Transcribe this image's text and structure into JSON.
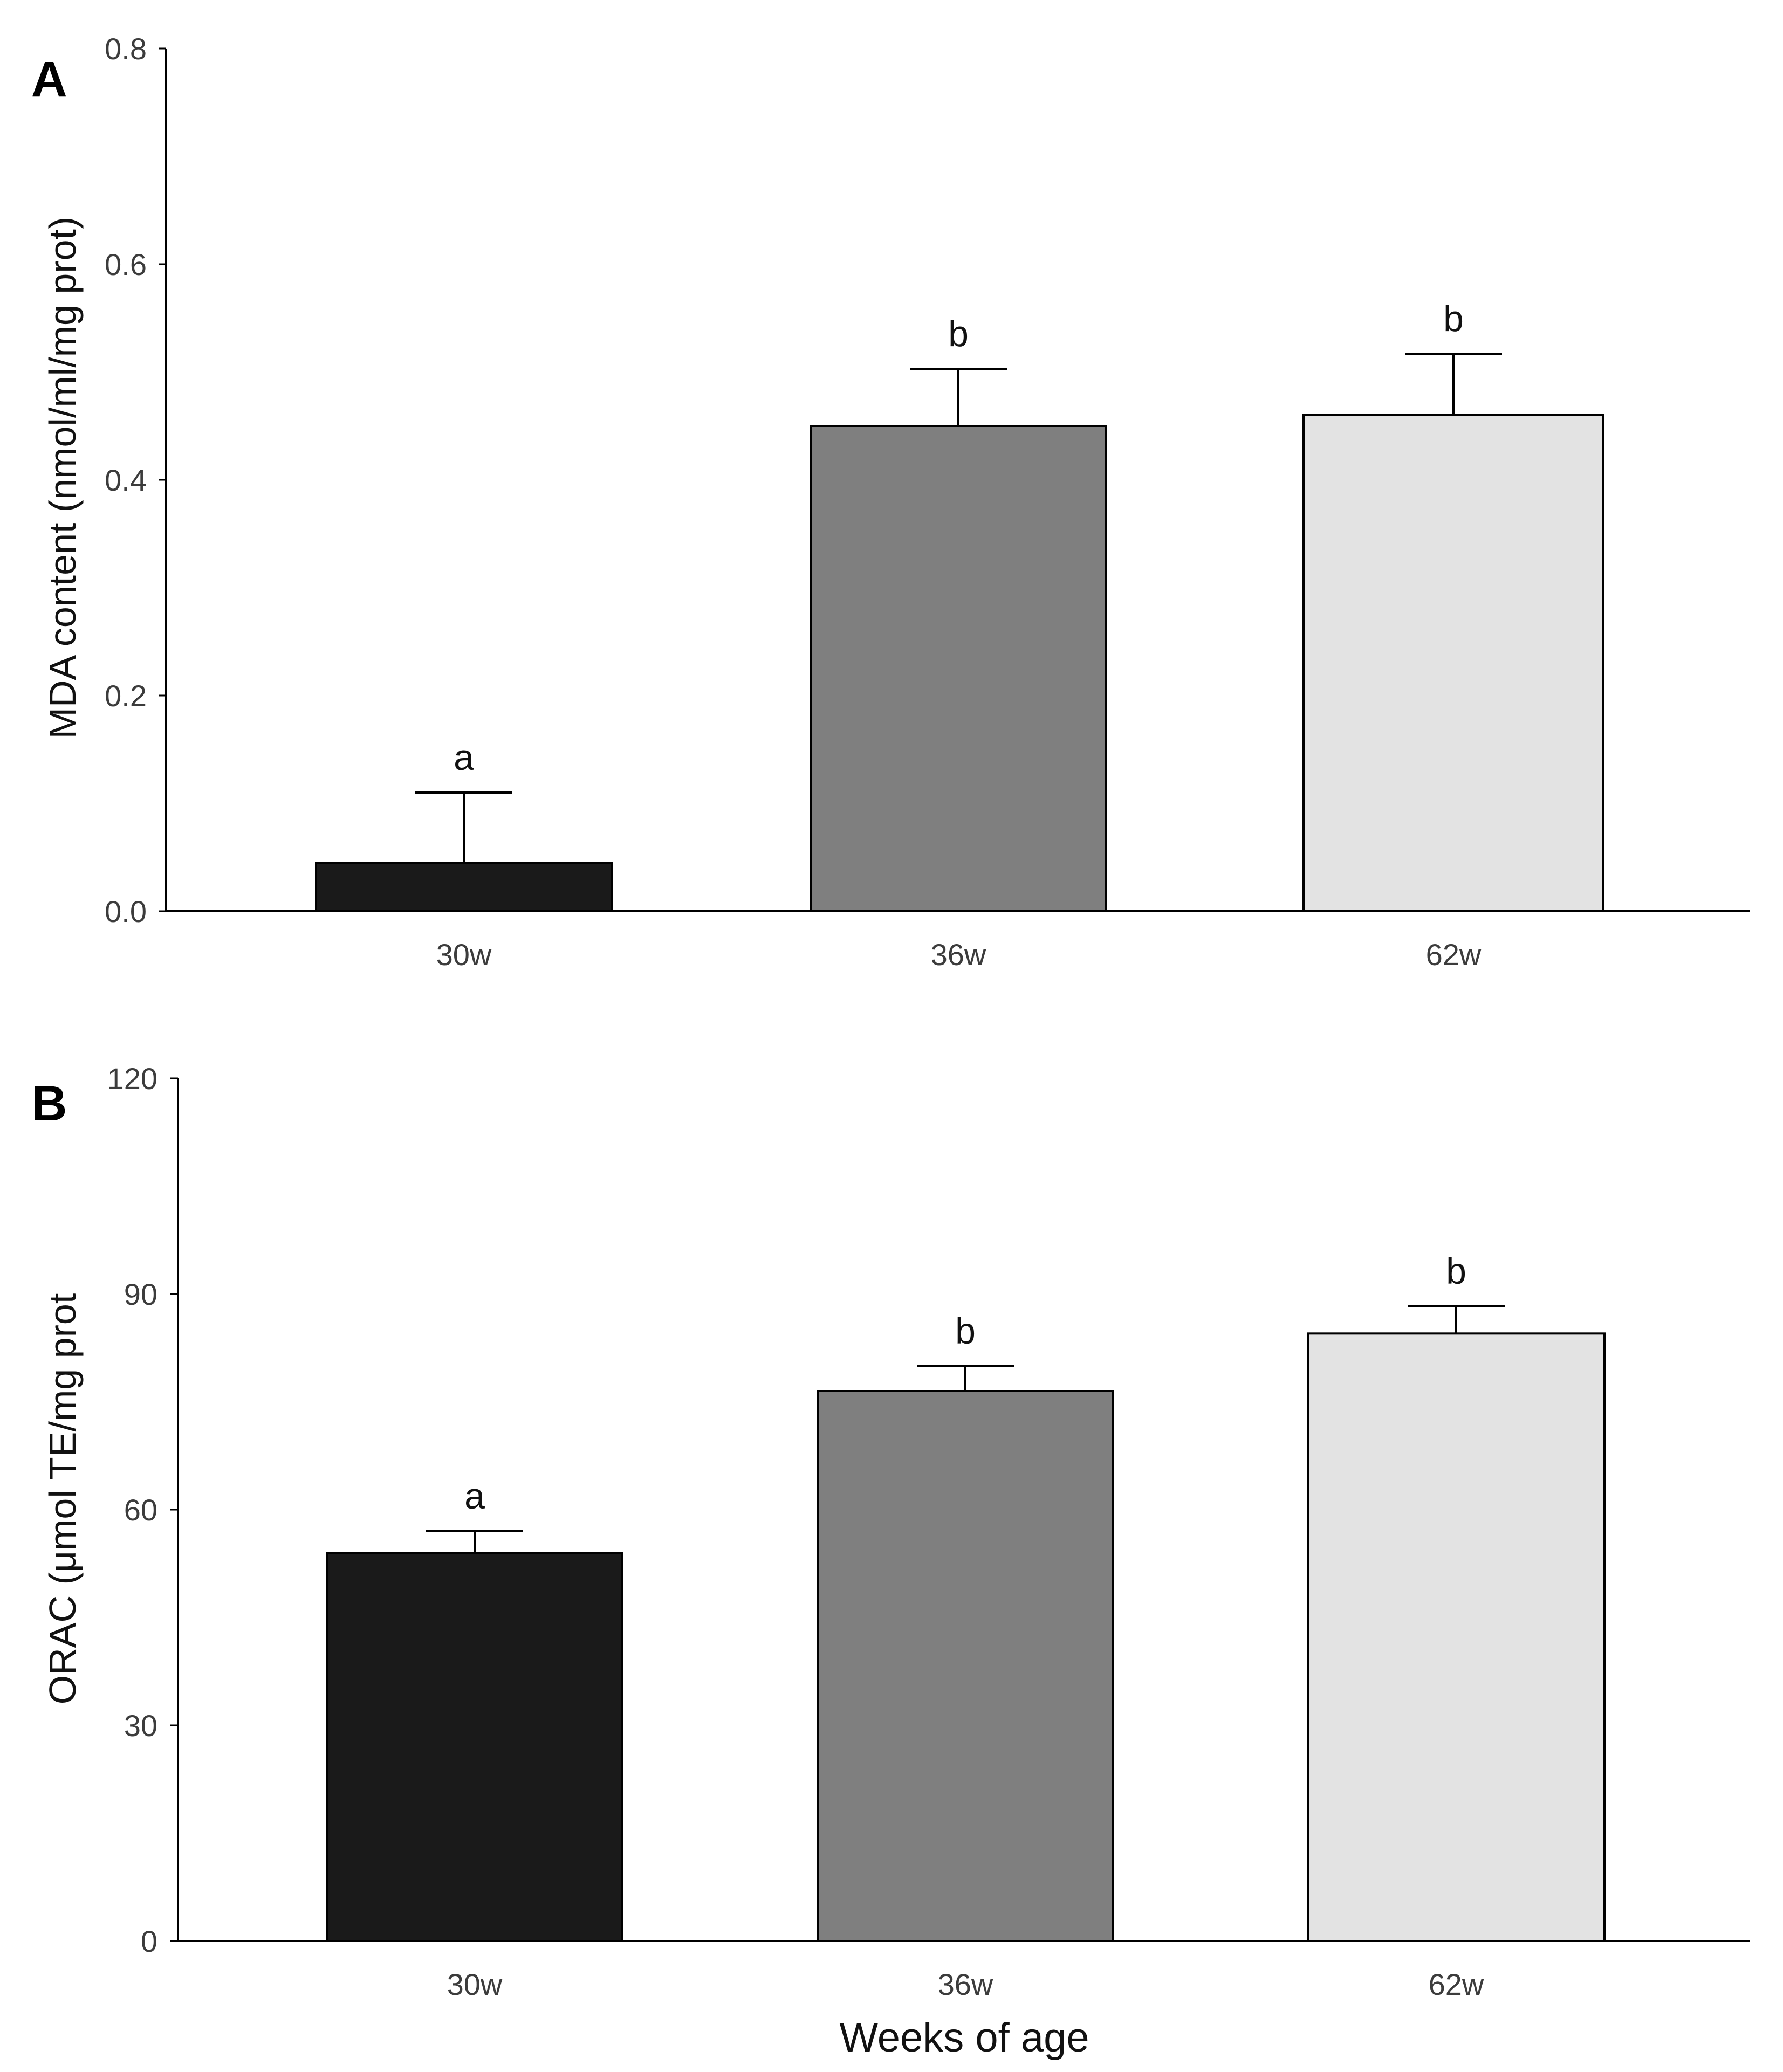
{
  "chart_data": [
    {
      "panel": "A",
      "type": "bar",
      "title": "",
      "xlabel": "",
      "ylabel": "MDA content (nmol/ml/mg prot)",
      "categories": [
        "30w",
        "36w",
        "62w"
      ],
      "values": [
        0.045,
        0.45,
        0.46
      ],
      "errors": [
        0.065,
        0.053,
        0.057
      ],
      "significance": [
        "a",
        "b",
        "b"
      ],
      "colors": [
        "#1a1a1a",
        "#7f7f7f",
        "#e3e3e3"
      ],
      "ylim": [
        0,
        0.8
      ],
      "yticks": [
        0,
        0.2,
        0.4,
        0.6,
        0.8
      ],
      "ytick_labels": [
        "0.0",
        "0.2",
        "0.4",
        "0.6",
        "0.8"
      ],
      "grid": false
    },
    {
      "panel": "B",
      "type": "bar",
      "title": "",
      "xlabel": "Weeks of age",
      "ylabel": "ORAC (μmol TE/mg prot",
      "categories": [
        "30w",
        "36w",
        "62w"
      ],
      "values": [
        54,
        76.5,
        84.5
      ],
      "errors": [
        3,
        3.5,
        3.8
      ],
      "significance": [
        "a",
        "b",
        "b"
      ],
      "colors": [
        "#1a1a1a",
        "#7f7f7f",
        "#e3e3e3"
      ],
      "ylim": [
        0,
        120
      ],
      "yticks": [
        0,
        30,
        60,
        90,
        120
      ],
      "ytick_labels": [
        "0",
        "30",
        "60",
        "90",
        "120"
      ],
      "grid": false
    }
  ]
}
